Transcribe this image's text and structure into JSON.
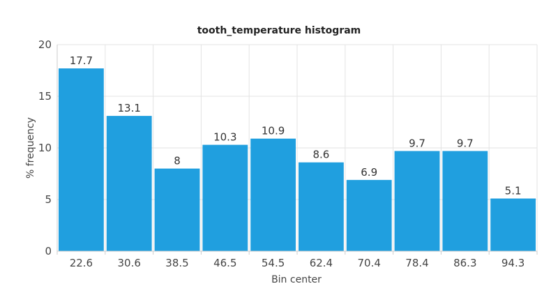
{
  "chart_data": {
    "type": "bar",
    "title": "tooth_temperature histogram",
    "xlabel": "Bin center",
    "ylabel": "% frequency",
    "categories": [
      "22.6",
      "30.6",
      "38.5",
      "46.5",
      "54.5",
      "62.4",
      "70.4",
      "78.4",
      "86.3",
      "94.3"
    ],
    "values": [
      17.7,
      13.1,
      8,
      10.3,
      10.9,
      8.6,
      6.9,
      9.7,
      9.7,
      5.1
    ],
    "value_labels": [
      "17.7",
      "13.1",
      "8",
      "10.3",
      "10.9",
      "8.6",
      "6.9",
      "9.7",
      "9.7",
      "5.1"
    ],
    "ylim": [
      0,
      20
    ],
    "yticks": [
      "0",
      "5",
      "10",
      "15",
      "20"
    ],
    "grid": true,
    "bar_color": "#209fdf"
  }
}
